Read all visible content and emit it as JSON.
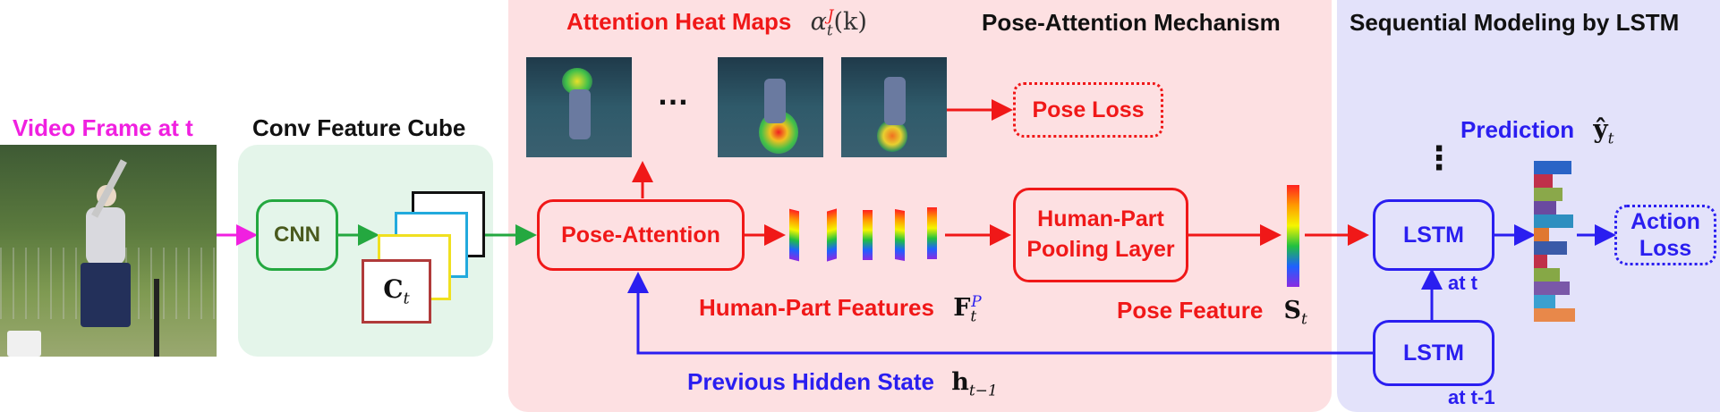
{
  "labels": {
    "video_frame": "Video Frame at t",
    "conv_feature_cube": "Conv Feature Cube",
    "attention_heat_maps": "Attention Heat Maps",
    "attention_symbol": "α",
    "attention_sup": "J",
    "attention_sub": "t",
    "attention_arg": "(k)",
    "pose_attention_mechanism": "Pose-Attention Mechanism",
    "sequential_modeling": "Sequential Modeling by LSTM",
    "ellipsis_h": "…",
    "ellipsis_v": "⋮",
    "pose_loss": "Pose Loss",
    "prediction": "Prediction",
    "prediction_symbol": "ŷ",
    "prediction_sub": "t",
    "cnn": "CNN",
    "ct_symbol": "C",
    "ct_sub": "t",
    "pose_attention": "Pose-Attention",
    "human_part_pooling_line1": "Human-Part",
    "human_part_pooling_line2": "Pooling Layer",
    "lstm_t": "LSTM",
    "at_t": "at t",
    "action_loss_line1": "Action",
    "action_loss_line2": "Loss",
    "human_part_features": "Human-Part Features",
    "fp_symbol": "F",
    "fp_sup": "P",
    "fp_sub": "t",
    "pose_feature": "Pose Feature",
    "st_symbol": "S",
    "st_sub": "t",
    "lstm_t1": "LSTM",
    "at_t1": "at t-1",
    "previous_hidden_state": "Previous Hidden State",
    "h_symbol": "h",
    "h_sub": "t−1"
  },
  "prediction_bars": [
    {
      "value": 0.92,
      "color": "#2a64c6"
    },
    {
      "value": 0.45,
      "color": "#c0304a"
    },
    {
      "value": 0.7,
      "color": "#8aa84a"
    },
    {
      "value": 0.55,
      "color": "#6a4aa0"
    },
    {
      "value": 0.95,
      "color": "#2e8fc0"
    },
    {
      "value": 0.38,
      "color": "#e07830"
    },
    {
      "value": 0.8,
      "color": "#3a5aa8"
    },
    {
      "value": 0.32,
      "color": "#c03048"
    },
    {
      "value": 0.62,
      "color": "#86a846"
    },
    {
      "value": 0.88,
      "color": "#7a58a8"
    },
    {
      "value": 0.52,
      "color": "#3aa0d0"
    },
    {
      "value": 1.0,
      "color": "#e8884a"
    }
  ],
  "colors": {
    "red": "#f01818",
    "blue": "#2a1ef0",
    "green": "#24a840",
    "magenta": "#f020e0",
    "conv_panel": "#e4f5ea",
    "attention_panel": "#fde0e2",
    "lstm_panel": "#e3e2fa"
  }
}
